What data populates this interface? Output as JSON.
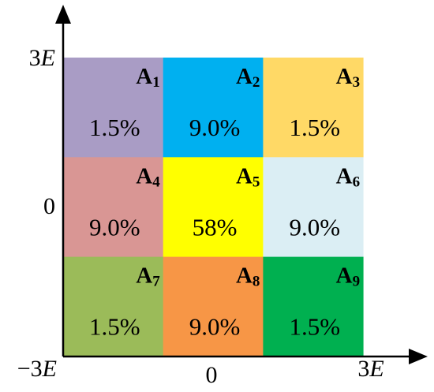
{
  "cells": [
    {
      "letter": "A",
      "sub": "1",
      "percent": "1.5%",
      "color": "#a99cc5"
    },
    {
      "letter": "A",
      "sub": "2",
      "percent": "9.0%",
      "color": "#00b0f0"
    },
    {
      "letter": "A",
      "sub": "3",
      "percent": "1.5%",
      "color": "#ffd966"
    },
    {
      "letter": "A",
      "sub": "4",
      "percent": "9.0%",
      "color": "#d99694"
    },
    {
      "letter": "A",
      "sub": "5",
      "percent": "58%",
      "color": "#ffff00"
    },
    {
      "letter": "A",
      "sub": "6",
      "percent": "9.0%",
      "color": "#dbeef4"
    },
    {
      "letter": "A",
      "sub": "7",
      "percent": "1.5%",
      "color": "#9bbb59"
    },
    {
      "letter": "A",
      "sub": "8",
      "percent": "9.0%",
      "color": "#f79646"
    },
    {
      "letter": "A",
      "sub": "9",
      "percent": "1.5%",
      "color": "#00b050"
    }
  ],
  "y_axis": {
    "top": {
      "coefficient": "3",
      "symbol": "E"
    },
    "middle": "0"
  },
  "x_axis": {
    "left": {
      "coefficient": "−3",
      "symbol": "E"
    },
    "middle": "0",
    "right": {
      "coefficient": "3",
      "symbol": "E"
    }
  }
}
